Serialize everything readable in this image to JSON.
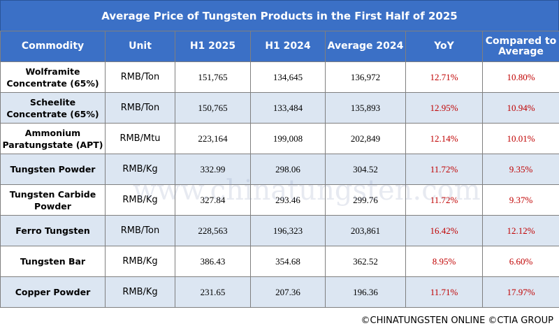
{
  "header": {
    "title": "Average Price of Tungsten Products in the First Half of 2025"
  },
  "table": {
    "columns": [
      "Commodity",
      "Unit",
      "H1 2025",
      "H1 2024",
      "Average 2024",
      "YoY",
      "Compared to Average"
    ],
    "rows": [
      [
        "Wolframite Concentrate (65%)",
        "RMB/Ton",
        "151,765",
        "134,645",
        "136,972",
        "12.71%",
        "10.80%"
      ],
      [
        "Scheelite Concentrate (65%)",
        "RMB/Ton",
        "150,765",
        "133,484",
        "135,893",
        "12.95%",
        "10.94%"
      ],
      [
        "Ammonium Paratungstate (APT)",
        "RMB/Mtu",
        "223,164",
        "199,008",
        "202,849",
        "12.14%",
        "10.01%"
      ],
      [
        "Tungsten Powder",
        "RMB/Kg",
        "332.99",
        "298.06",
        "304.52",
        "11.72%",
        "9.35%"
      ],
      [
        "Tungsten Carbide Powder",
        "RMB/Kg",
        "327.84",
        "293.46",
        "299.76",
        "11.72%",
        "9.37%"
      ],
      [
        "Ferro Tungsten",
        "RMB/Ton",
        "228,563",
        "196,323",
        "203,861",
        "16.42%",
        "12.12%"
      ],
      [
        "Tungsten Bar",
        "RMB/Kg",
        "386.43",
        "354.68",
        "362.52",
        "8.95%",
        "6.60%"
      ],
      [
        "Copper Powder",
        "RMB/Kg",
        "231.65",
        "207.36",
        "196.36",
        "11.71%",
        "17.97%"
      ]
    ]
  },
  "watermark": "www.chinatungsten.com",
  "footer": "©CHINATUNGSTEN ONLINE ©CTIA GROUP"
}
